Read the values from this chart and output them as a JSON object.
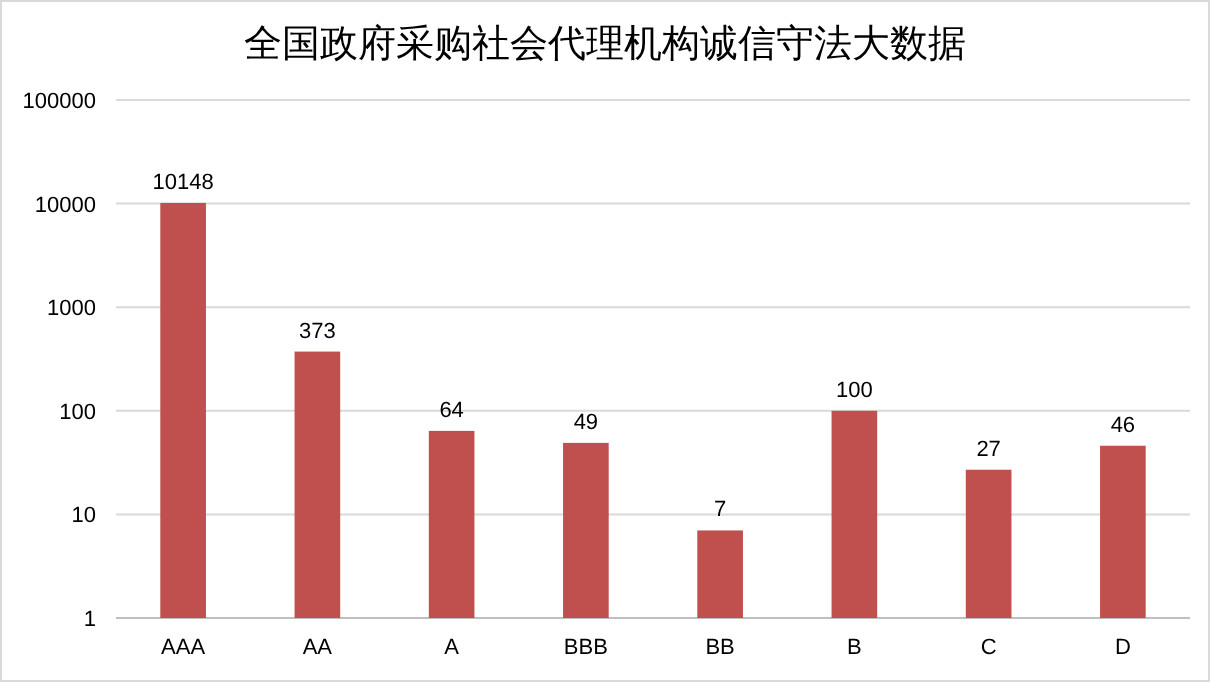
{
  "chart_data": {
    "type": "bar",
    "title": "全国政府采购社会代理机构诚信守法大数据",
    "categories": [
      "AAA",
      "AA",
      "A",
      "BBB",
      "BB",
      "B",
      "C",
      "D"
    ],
    "values": [
      10148,
      373,
      64,
      49,
      7,
      100,
      27,
      46
    ],
    "color": "#c0504d",
    "log": true,
    "ylim": [
      1,
      100000
    ],
    "yticks": [
      1,
      10,
      100,
      1000,
      10000,
      100000
    ],
    "grid": "y",
    "data_labels": true
  }
}
